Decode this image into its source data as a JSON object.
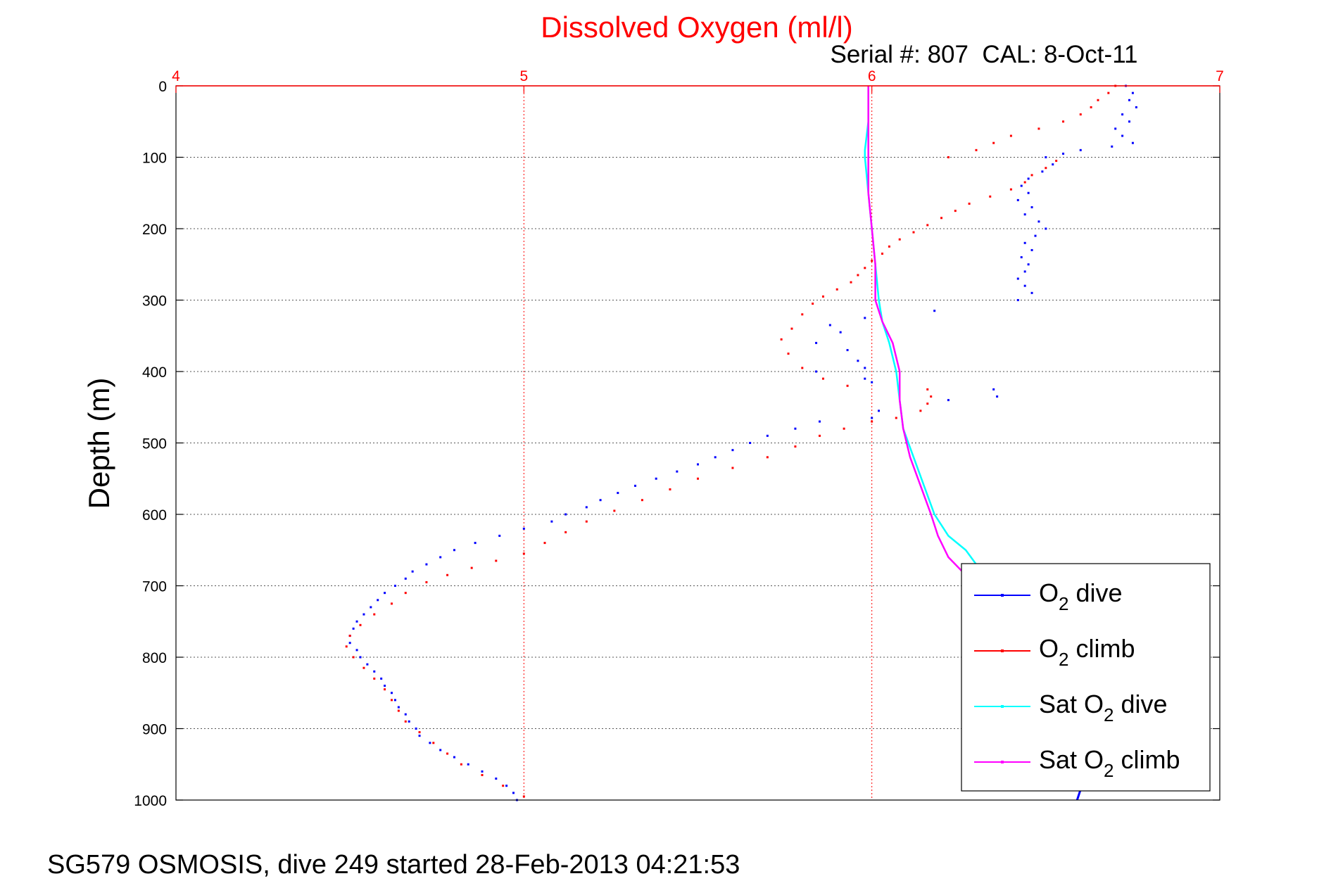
{
  "chart_data": {
    "type": "scatter",
    "title": "Dissolved Oxygen (ml/l)",
    "subtitle": "Serial #: 807  CAL: 8-Oct-11",
    "xlabel": "",
    "ylabel": "Depth (m)",
    "xlim": [
      4,
      7
    ],
    "ylim": [
      0,
      1000
    ],
    "y_reversed": true,
    "x_axis_position": "top",
    "x_ticks": [
      4,
      5,
      6,
      7
    ],
    "y_ticks": [
      0,
      100,
      200,
      300,
      400,
      500,
      600,
      700,
      800,
      900,
      1000
    ],
    "grid": true,
    "legend_position": "bottom-right",
    "series": [
      {
        "name": "O2 dive",
        "legend_label": {
          "main": "O",
          "sub": "2",
          "rest": " dive"
        },
        "color": "#0000ff",
        "style": "dots",
        "points": [
          [
            6.73,
            0
          ],
          [
            6.75,
            10
          ],
          [
            6.74,
            20
          ],
          [
            6.76,
            30
          ],
          [
            6.72,
            40
          ],
          [
            6.74,
            50
          ],
          [
            6.7,
            60
          ],
          [
            6.72,
            70
          ],
          [
            6.75,
            80
          ],
          [
            6.69,
            85
          ],
          [
            6.6,
            90
          ],
          [
            6.55,
            95
          ],
          [
            6.5,
            100
          ],
          [
            6.52,
            110
          ],
          [
            6.49,
            120
          ],
          [
            6.45,
            130
          ],
          [
            6.43,
            140
          ],
          [
            6.45,
            150
          ],
          [
            6.42,
            160
          ],
          [
            6.46,
            170
          ],
          [
            6.44,
            180
          ],
          [
            6.48,
            190
          ],
          [
            6.5,
            200
          ],
          [
            6.47,
            210
          ],
          [
            6.44,
            220
          ],
          [
            6.46,
            230
          ],
          [
            6.43,
            240
          ],
          [
            6.45,
            250
          ],
          [
            6.44,
            260
          ],
          [
            6.42,
            270
          ],
          [
            6.44,
            280
          ],
          [
            6.46,
            290
          ],
          [
            6.42,
            300
          ],
          [
            6.18,
            315
          ],
          [
            5.98,
            325
          ],
          [
            5.88,
            335
          ],
          [
            5.91,
            345
          ],
          [
            5.84,
            360
          ],
          [
            5.93,
            370
          ],
          [
            5.96,
            385
          ],
          [
            5.98,
            395
          ],
          [
            5.84,
            400
          ],
          [
            5.98,
            410
          ],
          [
            6.0,
            415
          ],
          [
            6.35,
            425
          ],
          [
            6.36,
            435
          ],
          [
            6.22,
            440
          ],
          [
            6.02,
            455
          ],
          [
            6.0,
            465
          ],
          [
            5.85,
            470
          ],
          [
            5.78,
            480
          ],
          [
            5.7,
            490
          ],
          [
            5.65,
            500
          ],
          [
            5.6,
            510
          ],
          [
            5.55,
            520
          ],
          [
            5.5,
            530
          ],
          [
            5.44,
            540
          ],
          [
            5.38,
            550
          ],
          [
            5.32,
            560
          ],
          [
            5.27,
            570
          ],
          [
            5.22,
            580
          ],
          [
            5.18,
            590
          ],
          [
            5.12,
            600
          ],
          [
            5.08,
            610
          ],
          [
            5.0,
            620
          ],
          [
            4.93,
            630
          ],
          [
            4.86,
            640
          ],
          [
            4.8,
            650
          ],
          [
            4.76,
            660
          ],
          [
            4.72,
            670
          ],
          [
            4.68,
            680
          ],
          [
            4.66,
            690
          ],
          [
            4.63,
            700
          ],
          [
            4.6,
            710
          ],
          [
            4.58,
            720
          ],
          [
            4.56,
            730
          ],
          [
            4.54,
            740
          ],
          [
            4.52,
            750
          ],
          [
            4.51,
            760
          ],
          [
            4.5,
            770
          ],
          [
            4.5,
            780
          ],
          [
            4.52,
            790
          ],
          [
            4.53,
            800
          ],
          [
            4.55,
            810
          ],
          [
            4.57,
            820
          ],
          [
            4.59,
            830
          ],
          [
            4.6,
            840
          ],
          [
            4.62,
            850
          ],
          [
            4.63,
            860
          ],
          [
            4.64,
            870
          ],
          [
            4.66,
            880
          ],
          [
            4.67,
            890
          ],
          [
            4.69,
            900
          ],
          [
            4.7,
            910
          ],
          [
            4.73,
            920
          ],
          [
            4.76,
            930
          ],
          [
            4.8,
            940
          ],
          [
            4.84,
            950
          ],
          [
            4.88,
            960
          ],
          [
            4.92,
            970
          ],
          [
            4.95,
            980
          ],
          [
            4.97,
            990
          ],
          [
            4.98,
            1000
          ]
        ]
      },
      {
        "name": "O2 climb",
        "legend_label": {
          "main": "O",
          "sub": "2",
          "rest": " climb"
        },
        "color": "#ff0000",
        "style": "dots",
        "points": [
          [
            6.7,
            0
          ],
          [
            6.68,
            10
          ],
          [
            6.65,
            20
          ],
          [
            6.63,
            30
          ],
          [
            6.6,
            40
          ],
          [
            6.55,
            50
          ],
          [
            6.48,
            60
          ],
          [
            6.4,
            70
          ],
          [
            6.35,
            80
          ],
          [
            6.3,
            90
          ],
          [
            6.22,
            100
          ],
          [
            6.53,
            105
          ],
          [
            6.5,
            115
          ],
          [
            6.46,
            125
          ],
          [
            6.44,
            135
          ],
          [
            6.4,
            145
          ],
          [
            6.34,
            155
          ],
          [
            6.28,
            165
          ],
          [
            6.24,
            175
          ],
          [
            6.2,
            185
          ],
          [
            6.16,
            195
          ],
          [
            6.12,
            205
          ],
          [
            6.08,
            215
          ],
          [
            6.05,
            225
          ],
          [
            6.03,
            235
          ],
          [
            6.0,
            245
          ],
          [
            5.98,
            255
          ],
          [
            5.96,
            265
          ],
          [
            5.94,
            275
          ],
          [
            5.9,
            285
          ],
          [
            5.86,
            295
          ],
          [
            5.83,
            305
          ],
          [
            5.8,
            320
          ],
          [
            5.77,
            340
          ],
          [
            5.74,
            355
          ],
          [
            5.76,
            375
          ],
          [
            5.8,
            395
          ],
          [
            5.86,
            410
          ],
          [
            5.93,
            420
          ],
          [
            6.16,
            425
          ],
          [
            6.17,
            435
          ],
          [
            6.16,
            445
          ],
          [
            6.14,
            455
          ],
          [
            6.07,
            465
          ],
          [
            6.0,
            470
          ],
          [
            5.92,
            480
          ],
          [
            5.85,
            490
          ],
          [
            5.78,
            505
          ],
          [
            5.7,
            520
          ],
          [
            5.6,
            535
          ],
          [
            5.5,
            550
          ],
          [
            5.42,
            565
          ],
          [
            5.34,
            580
          ],
          [
            5.26,
            595
          ],
          [
            5.18,
            610
          ],
          [
            5.12,
            625
          ],
          [
            5.06,
            640
          ],
          [
            5.0,
            655
          ],
          [
            4.92,
            665
          ],
          [
            4.85,
            675
          ],
          [
            4.78,
            685
          ],
          [
            4.72,
            695
          ],
          [
            4.66,
            710
          ],
          [
            4.62,
            725
          ],
          [
            4.57,
            740
          ],
          [
            4.53,
            755
          ],
          [
            4.5,
            770
          ],
          [
            4.49,
            785
          ],
          [
            4.51,
            800
          ],
          [
            4.54,
            815
          ],
          [
            4.57,
            830
          ],
          [
            4.6,
            845
          ],
          [
            4.62,
            860
          ],
          [
            4.64,
            875
          ],
          [
            4.66,
            890
          ],
          [
            4.7,
            905
          ],
          [
            4.74,
            920
          ],
          [
            4.78,
            935
          ],
          [
            4.82,
            950
          ],
          [
            4.88,
            965
          ],
          [
            4.94,
            980
          ],
          [
            5.0,
            995
          ]
        ]
      },
      {
        "name": "Sat O2 dive",
        "legend_label": {
          "main": "Sat O",
          "sub": "2",
          "rest": " dive"
        },
        "color": "#00ffff",
        "style": "line",
        "points": [
          [
            5.99,
            0
          ],
          [
            5.99,
            50
          ],
          [
            5.98,
            90
          ],
          [
            5.98,
            100
          ],
          [
            5.99,
            150
          ],
          [
            6.0,
            200
          ],
          [
            6.01,
            250
          ],
          [
            6.02,
            300
          ],
          [
            6.03,
            330
          ],
          [
            6.05,
            360
          ],
          [
            6.07,
            400
          ],
          [
            6.08,
            440
          ],
          [
            6.09,
            480
          ],
          [
            6.12,
            520
          ],
          [
            6.15,
            560
          ],
          [
            6.18,
            600
          ],
          [
            6.22,
            630
          ],
          [
            6.27,
            650
          ],
          [
            6.3,
            670
          ],
          [
            6.31,
            700
          ]
        ]
      },
      {
        "name": "Sat O2 climb",
        "legend_label": {
          "main": "Sat O",
          "sub": "2",
          "rest": " climb"
        },
        "color": "#ff00ff",
        "style": "line",
        "points": [
          [
            5.99,
            0
          ],
          [
            5.99,
            50
          ],
          [
            5.99,
            100
          ],
          [
            5.99,
            150
          ],
          [
            6.0,
            200
          ],
          [
            6.01,
            250
          ],
          [
            6.01,
            300
          ],
          [
            6.03,
            330
          ],
          [
            6.06,
            360
          ],
          [
            6.08,
            400
          ],
          [
            6.08,
            440
          ],
          [
            6.09,
            480
          ],
          [
            6.11,
            520
          ],
          [
            6.14,
            560
          ],
          [
            6.17,
            600
          ],
          [
            6.19,
            630
          ],
          [
            6.22,
            660
          ],
          [
            6.26,
            680
          ],
          [
            6.3,
            700
          ]
        ]
      }
    ],
    "bottom_fragment": {
      "color": "#0000ff",
      "points": [
        [
          6.6,
          985
        ],
        [
          6.59,
          1000
        ]
      ]
    }
  },
  "footer": "SG579 OSMOSIS, dive 249 started 28-Feb-2013 04:21:53"
}
